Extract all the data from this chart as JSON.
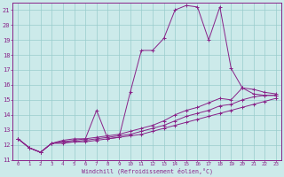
{
  "bg_color": "#cceaea",
  "line_color": "#882288",
  "grid_color": "#99cccc",
  "xlabel": "Windchill (Refroidissement éolien,°C)",
  "xlim": [
    -0.5,
    23.5
  ],
  "ylim": [
    11,
    21.5
  ],
  "yticks": [
    11,
    12,
    13,
    14,
    15,
    16,
    17,
    18,
    19,
    20,
    21
  ],
  "xticks": [
    0,
    1,
    2,
    3,
    4,
    5,
    6,
    7,
    8,
    9,
    10,
    11,
    12,
    13,
    14,
    15,
    16,
    17,
    18,
    19,
    20,
    21,
    22,
    23
  ],
  "series": [
    {
      "x": [
        0,
        1,
        2,
        3,
        4,
        5,
        6,
        7,
        8,
        9,
        10,
        11,
        12,
        13,
        14,
        15,
        16,
        17,
        18,
        19,
        20,
        21,
        22,
        23
      ],
      "y": [
        12.4,
        11.8,
        11.5,
        12.1,
        12.3,
        12.4,
        12.4,
        14.3,
        12.4,
        12.5,
        15.5,
        18.3,
        18.3,
        19.1,
        21.0,
        21.3,
        21.2,
        19.0,
        21.2,
        17.1,
        15.8,
        15.4,
        15.3,
        15.3
      ]
    },
    {
      "x": [
        0,
        1,
        2,
        3,
        4,
        5,
        6,
        7,
        8,
        9,
        10,
        11,
        12,
        13,
        14,
        15,
        16,
        17,
        18,
        19,
        20,
        21,
        22,
        23
      ],
      "y": [
        12.4,
        11.8,
        11.5,
        12.1,
        12.2,
        12.3,
        12.4,
        12.5,
        12.6,
        12.7,
        12.9,
        13.1,
        13.3,
        13.6,
        14.0,
        14.3,
        14.5,
        14.8,
        15.1,
        15.0,
        15.8,
        15.7,
        15.5,
        15.4
      ]
    },
    {
      "x": [
        0,
        1,
        2,
        3,
        4,
        5,
        6,
        7,
        8,
        9,
        10,
        11,
        12,
        13,
        14,
        15,
        16,
        17,
        18,
        19,
        20,
        21,
        22,
        23
      ],
      "y": [
        12.4,
        11.8,
        11.5,
        12.1,
        12.2,
        12.2,
        12.3,
        12.4,
        12.5,
        12.6,
        12.7,
        12.9,
        13.1,
        13.3,
        13.6,
        13.9,
        14.1,
        14.3,
        14.6,
        14.7,
        15.0,
        15.2,
        15.3,
        15.3
      ]
    },
    {
      "x": [
        0,
        1,
        2,
        3,
        4,
        5,
        6,
        7,
        8,
        9,
        10,
        11,
        12,
        13,
        14,
        15,
        16,
        17,
        18,
        19,
        20,
        21,
        22,
        23
      ],
      "y": [
        12.4,
        11.8,
        11.5,
        12.1,
        12.1,
        12.2,
        12.2,
        12.3,
        12.4,
        12.5,
        12.6,
        12.7,
        12.9,
        13.1,
        13.3,
        13.5,
        13.7,
        13.9,
        14.1,
        14.3,
        14.5,
        14.7,
        14.9,
        15.1
      ]
    }
  ]
}
